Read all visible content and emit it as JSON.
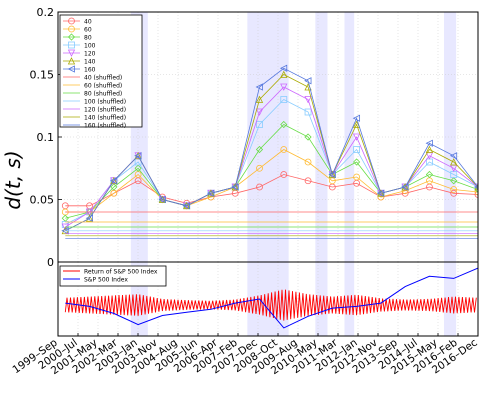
{
  "chart_data": [
    {
      "type": "line",
      "ylabel": "d(t, s)",
      "ylim": [
        0,
        0.2
      ],
      "y_ticks": [
        "0",
        "0.05",
        "0.1",
        "0.15",
        "0.2"
      ],
      "x_ticks": [
        "1999–Sep",
        "2000–Jul",
        "2001–May",
        "2002–Mar",
        "2003–Jan",
        "2003–Nov",
        "2004–Aug",
        "2005–Jun",
        "2006–Apr",
        "2007–Feb",
        "2007–Dec",
        "2008–Oct",
        "2009–Aug",
        "2010–May",
        "2011–Mar",
        "2012–Jan",
        "2012–Nov",
        "2013–Sep",
        "2014–Jul",
        "2015–May",
        "2016–Feb",
        "2016–Dec"
      ],
      "grid": true,
      "legend_position": "top-left",
      "shaded_periods": [
        [
          2002.7,
          2003.4
        ],
        [
          2007.5,
          2009.2
        ],
        [
          2010.3,
          2010.8
        ],
        [
          2011.5,
          2011.9
        ],
        [
          2015.6,
          2016.1
        ]
      ],
      "series": [
        {
          "name": "40",
          "color": "#ff6666",
          "marker": "circle",
          "x": [
            2000.0,
            2001.0,
            2002.0,
            2003.0,
            2004.0,
            2005.0,
            2006.0,
            2007.0,
            2008.0,
            2009.0,
            2010.0,
            2011.0,
            2012.0,
            2013.0,
            2014.0,
            2015.0,
            2016.0,
            2017.0
          ],
          "y": [
            0.045,
            0.045,
            0.055,
            0.065,
            0.052,
            0.047,
            0.052,
            0.055,
            0.06,
            0.07,
            0.065,
            0.06,
            0.063,
            0.052,
            0.055,
            0.06,
            0.055,
            0.054
          ]
        },
        {
          "name": "60",
          "color": "#ffbb33",
          "marker": "circle",
          "x": [
            2000.0,
            2001.0,
            2002.0,
            2003.0,
            2004.0,
            2005.0,
            2006.0,
            2007.0,
            2008.0,
            2009.0,
            2010.0,
            2011.0,
            2012.0,
            2013.0,
            2014.0,
            2015.0,
            2016.0,
            2017.0
          ],
          "y": [
            0.04,
            0.04,
            0.055,
            0.07,
            0.05,
            0.045,
            0.052,
            0.06,
            0.075,
            0.09,
            0.08,
            0.065,
            0.068,
            0.052,
            0.057,
            0.065,
            0.058,
            0.056
          ]
        },
        {
          "name": "80",
          "color": "#66dd44",
          "marker": "diamond",
          "x": [
            2000.0,
            2001.0,
            2002.0,
            2003.0,
            2004.0,
            2005.0,
            2006.0,
            2007.0,
            2008.0,
            2009.0,
            2010.0,
            2011.0,
            2012.0,
            2013.0,
            2014.0,
            2015.0,
            2016.0,
            2017.0
          ],
          "y": [
            0.035,
            0.04,
            0.06,
            0.075,
            0.05,
            0.045,
            0.055,
            0.06,
            0.09,
            0.11,
            0.1,
            0.07,
            0.08,
            0.055,
            0.06,
            0.07,
            0.065,
            0.058
          ]
        },
        {
          "name": "100",
          "color": "#88ccff",
          "marker": "square",
          "x": [
            2000.0,
            2001.0,
            2002.0,
            2003.0,
            2004.0,
            2005.0,
            2006.0,
            2007.0,
            2008.0,
            2009.0,
            2010.0,
            2011.0,
            2012.0,
            2013.0,
            2014.0,
            2015.0,
            2016.0,
            2017.0
          ],
          "y": [
            0.03,
            0.04,
            0.065,
            0.08,
            0.05,
            0.045,
            0.055,
            0.06,
            0.11,
            0.13,
            0.12,
            0.07,
            0.09,
            0.055,
            0.06,
            0.08,
            0.07,
            0.06
          ]
        },
        {
          "name": "120",
          "color": "#cc66ff",
          "marker": "triangle-down",
          "x": [
            2000.0,
            2001.0,
            2002.0,
            2003.0,
            2004.0,
            2005.0,
            2006.0,
            2007.0,
            2008.0,
            2009.0,
            2010.0,
            2011.0,
            2012.0,
            2013.0,
            2014.0,
            2015.0,
            2016.0,
            2017.0
          ],
          "y": [
            0.028,
            0.04,
            0.065,
            0.085,
            0.05,
            0.045,
            0.055,
            0.06,
            0.12,
            0.14,
            0.13,
            0.07,
            0.1,
            0.055,
            0.06,
            0.085,
            0.075,
            0.06
          ]
        },
        {
          "name": "140",
          "color": "#aaaa00",
          "marker": "triangle-up",
          "x": [
            2000.0,
            2001.0,
            2002.0,
            2003.0,
            2004.0,
            2005.0,
            2006.0,
            2007.0,
            2008.0,
            2009.0,
            2010.0,
            2011.0,
            2012.0,
            2013.0,
            2014.0,
            2015.0,
            2016.0,
            2017.0
          ],
          "y": [
            0.025,
            0.035,
            0.065,
            0.085,
            0.05,
            0.045,
            0.055,
            0.06,
            0.13,
            0.15,
            0.14,
            0.07,
            0.11,
            0.055,
            0.06,
            0.09,
            0.08,
            0.06
          ]
        },
        {
          "name": "160",
          "color": "#5577dd",
          "marker": "triangle-left",
          "x": [
            2000.0,
            2001.0,
            2002.0,
            2003.0,
            2004.0,
            2005.0,
            2006.0,
            2007.0,
            2008.0,
            2009.0,
            2010.0,
            2011.0,
            2012.0,
            2013.0,
            2014.0,
            2015.0,
            2016.0,
            2017.0
          ],
          "y": [
            0.025,
            0.035,
            0.065,
            0.085,
            0.05,
            0.045,
            0.055,
            0.06,
            0.14,
            0.155,
            0.145,
            0.07,
            0.115,
            0.055,
            0.06,
            0.095,
            0.085,
            0.06
          ]
        },
        {
          "name": "40 (shuffled)",
          "color": "#ff6666",
          "marker": "none",
          "x": [
            2000.0,
            2002.0,
            2004.0,
            2006.0,
            2008.0,
            2010.0,
            2012.0,
            2014.0,
            2016.0,
            2017.0
          ],
          "y": [
            0.04,
            0.04,
            0.04,
            0.04,
            0.04,
            0.04,
            0.04,
            0.04,
            0.04,
            0.04
          ]
        },
        {
          "name": "60 (shuffled)",
          "color": "#ffbb33",
          "marker": "none",
          "x": [
            2000.0,
            2002.0,
            2004.0,
            2006.0,
            2008.0,
            2010.0,
            2012.0,
            2014.0,
            2016.0,
            2017.0
          ],
          "y": [
            0.032,
            0.032,
            0.032,
            0.032,
            0.032,
            0.032,
            0.032,
            0.032,
            0.032,
            0.032
          ]
        },
        {
          "name": "80 (shuffled)",
          "color": "#66dd44",
          "marker": "none",
          "x": [
            2000.0,
            2002.0,
            2004.0,
            2006.0,
            2008.0,
            2010.0,
            2012.0,
            2014.0,
            2016.0,
            2017.0
          ],
          "y": [
            0.028,
            0.028,
            0.028,
            0.028,
            0.028,
            0.028,
            0.028,
            0.028,
            0.028,
            0.028
          ]
        },
        {
          "name": "100 (shuffled)",
          "color": "#88ccff",
          "marker": "none",
          "x": [
            2000.0,
            2002.0,
            2004.0,
            2006.0,
            2008.0,
            2010.0,
            2012.0,
            2014.0,
            2016.0,
            2017.0
          ],
          "y": [
            0.025,
            0.025,
            0.025,
            0.025,
            0.025,
            0.025,
            0.025,
            0.025,
            0.025,
            0.025
          ]
        },
        {
          "name": "120 (shuffled)",
          "color": "#cc66ff",
          "marker": "none",
          "x": [
            2000.0,
            2002.0,
            2004.0,
            2006.0,
            2008.0,
            2010.0,
            2012.0,
            2014.0,
            2016.0,
            2017.0
          ],
          "y": [
            0.023,
            0.023,
            0.023,
            0.023,
            0.023,
            0.023,
            0.023,
            0.023,
            0.023,
            0.023
          ]
        },
        {
          "name": "140 (shuffled)",
          "color": "#aaaa00",
          "marker": "none",
          "x": [
            2000.0,
            2002.0,
            2004.0,
            2006.0,
            2008.0,
            2010.0,
            2012.0,
            2014.0,
            2016.0,
            2017.0
          ],
          "y": [
            0.021,
            0.021,
            0.021,
            0.021,
            0.021,
            0.021,
            0.021,
            0.021,
            0.021,
            0.021
          ]
        },
        {
          "name": "160 (shuffled)",
          "color": "#5577dd",
          "marker": "none",
          "x": [
            2000.0,
            2002.0,
            2004.0,
            2006.0,
            2008.0,
            2010.0,
            2012.0,
            2014.0,
            2016.0,
            2017.0
          ],
          "y": [
            0.019,
            0.019,
            0.019,
            0.019,
            0.019,
            0.019,
            0.019,
            0.019,
            0.019,
            0.019
          ]
        }
      ]
    },
    {
      "type": "line",
      "legend_position": "top-left",
      "x_ticks": [
        "1999–Sep",
        "2000–Jul",
        "2001–May",
        "2002–Mar",
        "2003–Jan",
        "2003–Nov",
        "2004–Aug",
        "2005–Jun",
        "2006–Apr",
        "2007–Feb",
        "2007–Dec",
        "2008–Oct",
        "2009–Aug",
        "2010–May",
        "2011–Mar",
        "2012–Jan",
        "2012–Nov",
        "2013–Sep",
        "2014–Jul",
        "2015–May",
        "2016–Feb",
        "2016–Dec"
      ],
      "series": [
        {
          "name": "Return of S&P 500 Index",
          "color": "#ff0000",
          "x": [
            2000.0,
            2001.0,
            2002.0,
            2003.0,
            2004.0,
            2005.0,
            2006.0,
            2007.0,
            2008.0,
            2009.0,
            2010.0,
            2011.0,
            2012.0,
            2013.0,
            2014.0,
            2015.0,
            2016.0,
            2017.0
          ],
          "y": [
            0.6,
            0.7,
            0.8,
            0.9,
            0.5,
            0.4,
            0.35,
            0.45,
            0.8,
            1.3,
            0.9,
            0.7,
            0.85,
            0.55,
            0.45,
            0.5,
            0.7,
            0.6
          ]
        },
        {
          "name": "S&P 500 Index",
          "color": "#0000ff",
          "x": [
            2000.0,
            2001.0,
            2002.0,
            2003.0,
            2004.0,
            2005.0,
            2006.0,
            2007.0,
            2008.0,
            2009.0,
            2010.0,
            2011.0,
            2012.0,
            2013.0,
            2014.0,
            2015.0,
            2016.0,
            2017.0
          ],
          "y": [
            1400,
            1320,
            1150,
            880,
            1100,
            1180,
            1250,
            1400,
            1500,
            800,
            1080,
            1280,
            1320,
            1400,
            1800,
            2050,
            2000,
            2250
          ]
        }
      ]
    }
  ]
}
